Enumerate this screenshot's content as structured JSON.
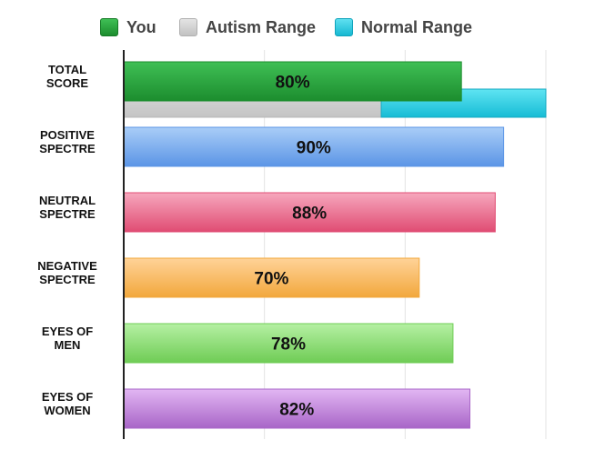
{
  "chart_data": {
    "type": "bar",
    "orientation": "horizontal",
    "categories": [
      "TOTAL SCORE",
      "POSITIVE SPECTRE",
      "NEUTRAL SPECTRE",
      "NEGATIVE SPECTRE",
      "EYES OF MEN",
      "EYES OF WOMEN"
    ],
    "category_lines": [
      [
        "TOTAL",
        "SCORE"
      ],
      [
        "POSITIVE",
        "SPECTRE"
      ],
      [
        "NEUTRAL",
        "SPECTRE"
      ],
      [
        "NEGATIVE",
        "SPECTRE"
      ],
      [
        "EYES OF",
        "MEN"
      ],
      [
        "EYES OF",
        "WOMEN"
      ]
    ],
    "values": [
      80,
      90,
      88,
      70,
      78,
      82
    ],
    "value_labels": [
      "80%",
      "90%",
      "88%",
      "70%",
      "78%",
      "82%"
    ],
    "bar_colors": [
      [
        "#3fbf55",
        "#1c8d2e"
      ],
      [
        "#a9cdf7",
        "#5b95e6"
      ],
      [
        "#f6a7bd",
        "#e04c73"
      ],
      [
        "#ffd398",
        "#f2a83c"
      ],
      [
        "#b5f0a3",
        "#6fcc55"
      ],
      [
        "#e2b6f3",
        "#a865c8"
      ]
    ],
    "ranges": {
      "autism": [
        0,
        61
      ],
      "normal": [
        61,
        100
      ],
      "category": "TOTAL SCORE"
    },
    "xlim": [
      0,
      100
    ],
    "grid": true,
    "legend": {
      "position": "top",
      "entries": [
        {
          "label": "You",
          "color": "#1e9a3a"
        },
        {
          "label": "Autism Range",
          "color": "#cfcfcf"
        },
        {
          "label": "Normal Range",
          "color": "#2cc9e0"
        }
      ]
    }
  }
}
